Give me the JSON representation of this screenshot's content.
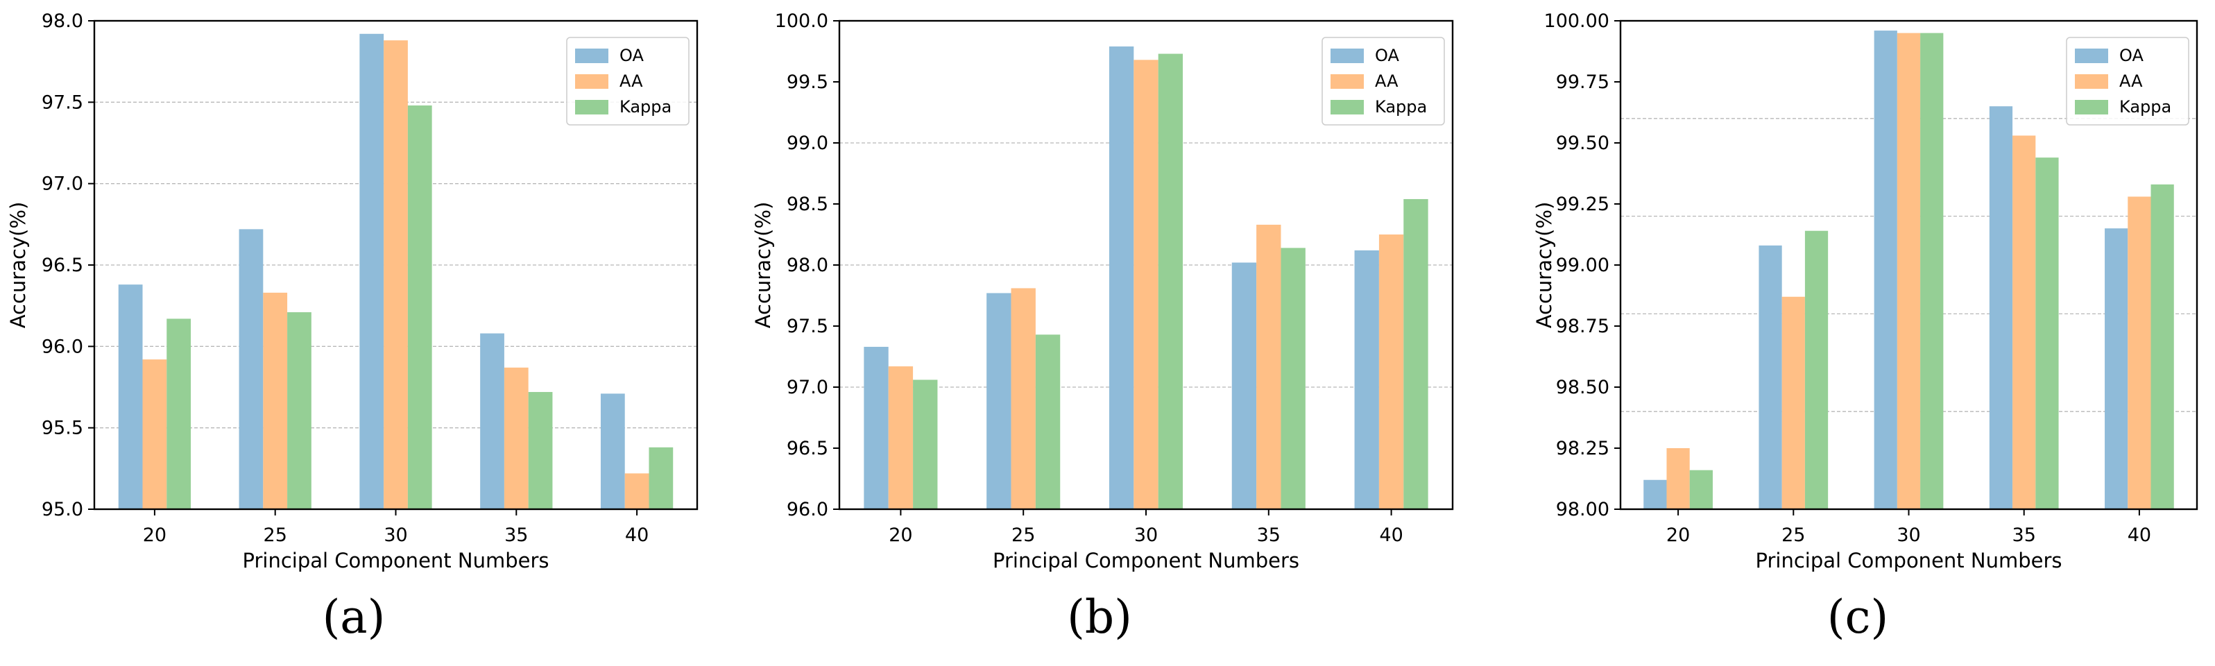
{
  "chart_data": [
    {
      "type": "bar",
      "panel_label": "(a)",
      "categories": [
        "20",
        "25",
        "30",
        "35",
        "40"
      ],
      "series": [
        {
          "name": "OA",
          "color": "#8fbbd9",
          "values": [
            96.38,
            96.72,
            97.92,
            96.08,
            95.71
          ]
        },
        {
          "name": "AA",
          "color": "#ffbf86",
          "values": [
            95.92,
            96.33,
            97.88,
            95.87,
            95.22
          ]
        },
        {
          "name": "Kappa",
          "color": "#95cf95",
          "values": [
            96.17,
            96.21,
            97.48,
            95.72,
            95.38
          ]
        }
      ],
      "xlabel": "Principal Component Numbers",
      "ylabel": "Accuracy(%)",
      "ylim": [
        95.0,
        98.0
      ],
      "yticks": [
        95.0,
        95.5,
        96.0,
        96.5,
        97.0,
        97.5,
        98.0
      ],
      "ytick_labels": [
        "95.0",
        "95.5",
        "96.0",
        "96.5",
        "97.0",
        "97.5",
        "98.0"
      ],
      "grid_lines": [
        95.5,
        96.0,
        96.5,
        97.0,
        97.5
      ],
      "legend": "upper-right"
    },
    {
      "type": "bar",
      "panel_label": "(b)",
      "categories": [
        "20",
        "25",
        "30",
        "35",
        "40"
      ],
      "series": [
        {
          "name": "OA",
          "color": "#8fbbd9",
          "values": [
            97.33,
            97.77,
            99.79,
            98.02,
            98.12
          ]
        },
        {
          "name": "AA",
          "color": "#ffbf86",
          "values": [
            97.17,
            97.81,
            99.68,
            98.33,
            98.25
          ]
        },
        {
          "name": "Kappa",
          "color": "#95cf95",
          "values": [
            97.06,
            97.43,
            99.73,
            98.14,
            98.54
          ]
        }
      ],
      "xlabel": "Principal Component Numbers",
      "ylabel": "Accuracy(%)",
      "ylim": [
        96.0,
        100.0
      ],
      "yticks": [
        96.0,
        96.5,
        97.0,
        97.5,
        98.0,
        98.5,
        99.0,
        99.5,
        100.0
      ],
      "ytick_labels": [
        "96.0",
        "96.5",
        "97.0",
        "97.5",
        "98.0",
        "98.5",
        "99.0",
        "99.5",
        "100.0"
      ],
      "grid_lines": [
        97.0,
        98.0,
        99.0
      ],
      "legend": "upper-right"
    },
    {
      "type": "bar",
      "panel_label": "(c)",
      "categories": [
        "20",
        "25",
        "30",
        "35",
        "40"
      ],
      "series": [
        {
          "name": "OA",
          "color": "#8fbbd9",
          "values": [
            98.12,
            99.08,
            99.96,
            99.65,
            99.15
          ]
        },
        {
          "name": "AA",
          "color": "#ffbf86",
          "values": [
            98.25,
            98.87,
            99.95,
            99.53,
            99.28
          ]
        },
        {
          "name": "Kappa",
          "color": "#95cf95",
          "values": [
            98.16,
            99.14,
            99.95,
            99.44,
            99.33
          ]
        }
      ],
      "xlabel": "Principal Component Numbers",
      "ylabel": "Accuracy(%)",
      "ylim": [
        98.0,
        100.0
      ],
      "yticks": [
        98.0,
        98.25,
        98.5,
        98.75,
        99.0,
        99.25,
        99.5,
        99.75,
        100.0
      ],
      "ytick_labels": [
        "98.00",
        "98.25",
        "98.50",
        "98.75",
        "99.00",
        "99.25",
        "99.50",
        "99.75",
        "100.00"
      ],
      "grid_lines": [
        98.4,
        98.8,
        99.2,
        99.6
      ],
      "legend": "upper-right"
    }
  ]
}
